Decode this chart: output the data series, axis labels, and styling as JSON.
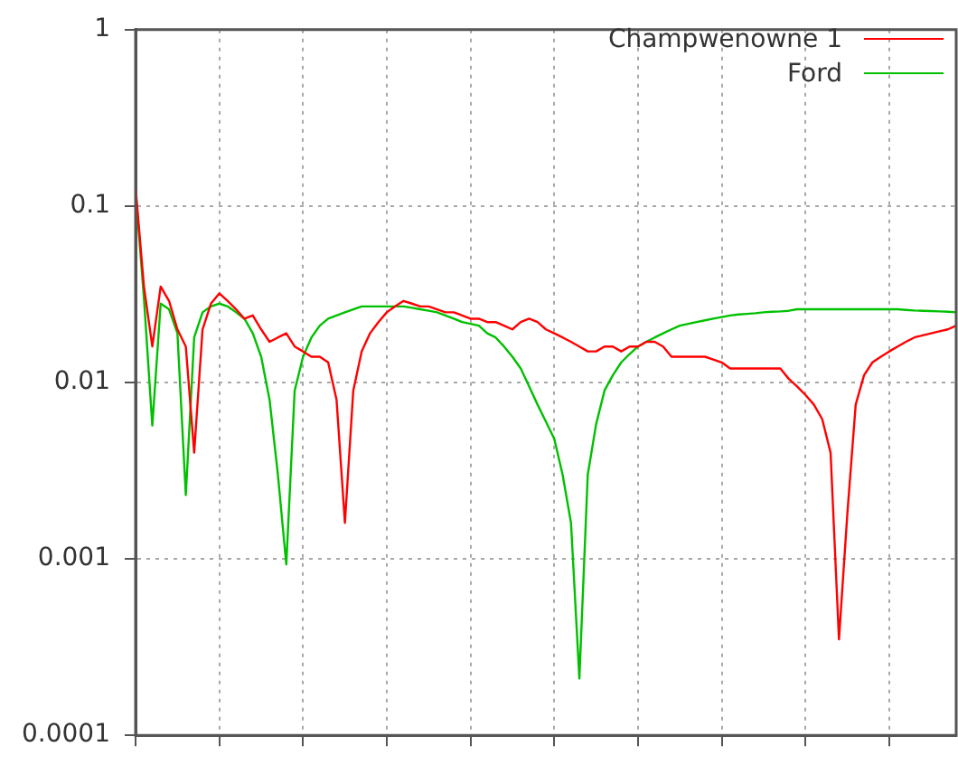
{
  "chart_data": {
    "type": "line",
    "log": "y",
    "grid": true,
    "legend": "top right",
    "marker": "none",
    "line_style": "solid",
    "tick_labels": "y",
    "categories": [
      null,
      null,
      null,
      null,
      null,
      null,
      null,
      null,
      null,
      null,
      null,
      null,
      null,
      null,
      null,
      null,
      null,
      null,
      null,
      null,
      null,
      null,
      null,
      null,
      null,
      null,
      null,
      null,
      null,
      null,
      null,
      null,
      null,
      null,
      null,
      null,
      null,
      null,
      null,
      null,
      null,
      null,
      null,
      null,
      null,
      null,
      null,
      null,
      null,
      null,
      null,
      null,
      null,
      null,
      null,
      null,
      null,
      null,
      null,
      null,
      null,
      null,
      null,
      null,
      null,
      null,
      null,
      null,
      null,
      null,
      null,
      null,
      null,
      null,
      null,
      null,
      null,
      null,
      null,
      null,
      null,
      null,
      null,
      null,
      null,
      null,
      null,
      null,
      null,
      null,
      null,
      null,
      null,
      null,
      null,
      null,
      null,
      null,
      null
    ],
    "ylim": [
      0.0001,
      1
    ],
    "yticks": [
      0.0001,
      0.001,
      0.01,
      0.1,
      1
    ],
    "series": [
      {
        "name": "Champwenowne 1",
        "color": "#ff0000",
        "values": [
          0.128,
          0.035,
          0.016,
          0.035,
          0.029,
          0.02,
          0.016,
          0.004,
          0.02,
          0.028,
          0.032,
          0.029,
          0.026,
          0.023,
          0.024,
          0.02,
          0.017,
          0.018,
          0.019,
          0.016,
          0.015,
          0.014,
          0.014,
          0.013,
          0.008,
          0.0016,
          0.009,
          0.015,
          0.019,
          0.022,
          0.025,
          0.027,
          0.029,
          0.028,
          0.027,
          0.027,
          0.026,
          0.025,
          0.025,
          0.024,
          0.023,
          0.023,
          0.022,
          0.022,
          0.021,
          0.02,
          0.022,
          0.023,
          0.022,
          0.02,
          0.019,
          0.018,
          0.017,
          0.016,
          0.015,
          0.015,
          0.016,
          0.016,
          0.015,
          0.016,
          0.016,
          0.017,
          0.017,
          0.016,
          0.014,
          0.014,
          0.014,
          0.014,
          0.014,
          0.0135,
          0.013,
          0.012,
          0.012,
          0.012,
          0.012,
          0.012,
          0.012,
          0.012,
          0.0105,
          0.0095,
          0.0085,
          0.0075,
          0.0062,
          0.004,
          0.00035,
          0.0018,
          0.0075,
          0.011,
          0.013,
          0.014,
          0.015,
          0.016,
          0.017,
          0.018,
          0.0185,
          0.019,
          0.0195,
          0.02,
          0.021
        ]
      },
      {
        "name": "Ford",
        "color": "#00c000",
        "values": [
          0.123,
          0.03,
          0.0057,
          0.028,
          0.026,
          0.019,
          0.0023,
          0.018,
          0.025,
          0.027,
          0.028,
          0.027,
          0.025,
          0.023,
          0.019,
          0.014,
          0.008,
          0.003,
          0.00093,
          0.009,
          0.014,
          0.018,
          0.021,
          0.023,
          0.024,
          0.025,
          0.026,
          0.027,
          0.027,
          0.027,
          0.027,
          0.027,
          0.027,
          0.0265,
          0.026,
          0.0255,
          0.025,
          0.024,
          0.023,
          0.022,
          0.0215,
          0.021,
          0.019,
          0.018,
          0.016,
          0.014,
          0.012,
          0.0095,
          0.0075,
          0.006,
          0.0048,
          0.003,
          0.0016,
          0.00021,
          0.003,
          0.0058,
          0.009,
          0.011,
          0.013,
          0.0145,
          0.016,
          0.017,
          0.018,
          0.019,
          0.02,
          0.021,
          0.0215,
          0.022,
          0.0225,
          0.023,
          0.0235,
          0.024,
          0.0243,
          0.0245,
          0.0247,
          0.025,
          0.0252,
          0.0253,
          0.0255,
          0.026,
          0.026,
          0.026,
          0.026,
          0.026,
          0.026,
          0.026,
          0.026,
          0.026,
          0.026,
          0.026,
          0.026,
          0.026,
          0.0258,
          0.0256,
          0.0255,
          0.0254,
          0.0253,
          0.0252,
          0.025
        ]
      }
    ]
  }
}
